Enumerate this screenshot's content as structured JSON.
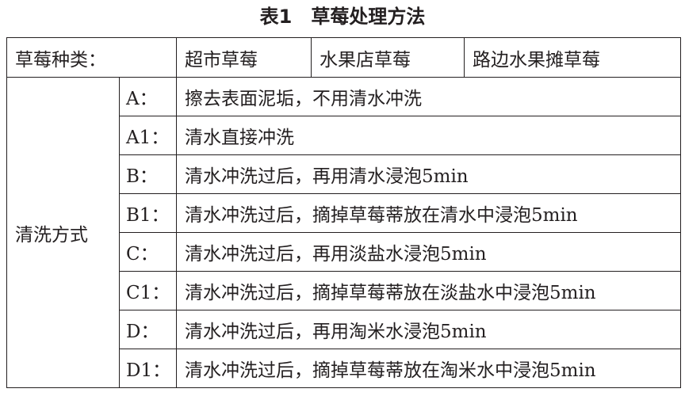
{
  "title": "表1　草莓处理方法",
  "header": {
    "label": "草莓种类：",
    "types": [
      "超市草莓",
      "水果店草莓",
      "路边水果摊草莓"
    ]
  },
  "method_label": "清洗方式",
  "rows": [
    {
      "code": "A：",
      "desc": "擦去表面泥垢，不用清水冲洗"
    },
    {
      "code": "A1：",
      "desc": "清水直接冲洗"
    },
    {
      "code": "B：",
      "desc": "清水冲洗过后，再用清水浸泡5min"
    },
    {
      "code": "B1：",
      "desc": "清水冲洗过后，摘掉草莓蒂放在清水中浸泡5min"
    },
    {
      "code": "C：",
      "desc": "清水冲洗过后，再用淡盐水浸泡5min"
    },
    {
      "code": "C1：",
      "desc": "清水冲洗过后，摘掉草莓蒂放在淡盐水中浸泡5min"
    },
    {
      "code": "D：",
      "desc": "清水冲洗过后，再用淘米水浸泡5min"
    },
    {
      "code": "D1：",
      "desc": "清水冲洗过后，摘掉草莓蒂放在淘米水中浸泡5min"
    }
  ]
}
